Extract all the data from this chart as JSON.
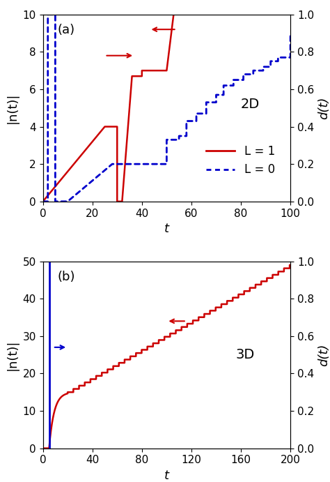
{
  "panel_a": {
    "label": "(a)",
    "annotation": "2D",
    "xlim": [
      0,
      100
    ],
    "ylim_left": [
      0,
      10
    ],
    "ylim_right": [
      0,
      1
    ],
    "xlabel": "t",
    "ylabel_left": "|n(t)|",
    "ylabel_right": "d(t)",
    "xticks": [
      0,
      20,
      40,
      60,
      80,
      100
    ],
    "yticks_left": [
      0,
      2,
      4,
      6,
      8,
      10
    ],
    "yticks_right": [
      0,
      0.2,
      0.4,
      0.6,
      0.8,
      1.0
    ],
    "L1_color": "#cc0000",
    "L0_color": "#0000cc",
    "legend_L1": "L = 1",
    "legend_L0": "L = 0"
  },
  "panel_b": {
    "label": "(b)",
    "annotation": "3D",
    "xlim": [
      0,
      200
    ],
    "ylim_left": [
      0,
      50
    ],
    "ylim_right": [
      0,
      1
    ],
    "xlabel": "t",
    "ylabel_left": "|n(t)|",
    "ylabel_right": "d(t)",
    "xticks": [
      0,
      40,
      80,
      120,
      160,
      200
    ],
    "yticks_left": [
      0,
      10,
      20,
      30,
      40,
      50
    ],
    "yticks_right": [
      0,
      0.2,
      0.4,
      0.6,
      0.8,
      1.0
    ],
    "L1_color": "#cc0000",
    "L0_color": "#0000cc"
  },
  "background_color": "#ffffff",
  "tick_fontsize": 11,
  "label_fontsize": 13,
  "legend_fontsize": 12
}
